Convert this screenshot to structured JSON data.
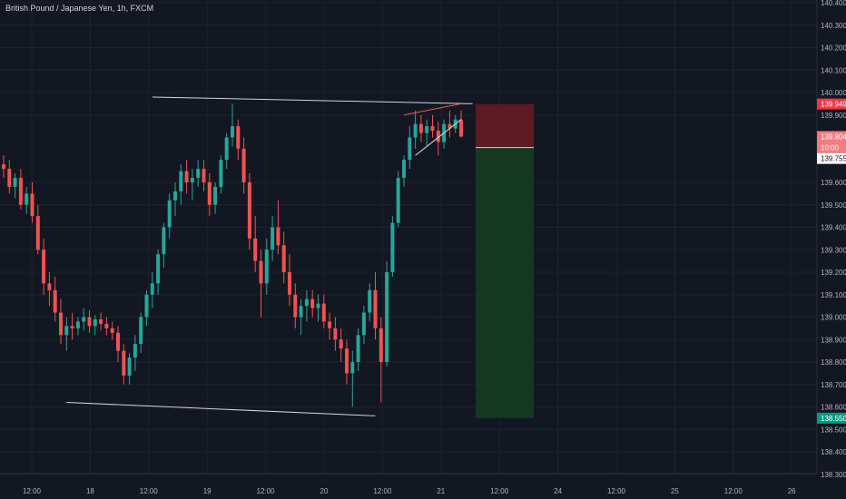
{
  "chart_data": {
    "type": "candlestick",
    "title": "British Pound / Japanese Yen, 1h, FXCM",
    "y_ticks": [
      "140.400",
      "140.300",
      "140.200",
      "140.100",
      "140.000",
      "139.900",
      "139.600",
      "139.500",
      "139.400",
      "139.300",
      "139.200",
      "139.100",
      "139.000",
      "138.900",
      "138.800",
      "138.700",
      "138.600",
      "138.500",
      "138.400",
      "138.300"
    ],
    "x_ticks": [
      "12:00",
      "18",
      "12:00",
      "19",
      "12:00",
      "20",
      "12:00",
      "21",
      "12:00",
      "24",
      "12:00",
      "25",
      "12:00",
      "26"
    ],
    "price_labels": {
      "stop": {
        "text": "139.949",
        "color": "#f23645"
      },
      "last": {
        "text": "139.804",
        "color": "#f77c80"
      },
      "countdown": {
        "text": "10:00",
        "color": "#f77c80"
      },
      "entry": {
        "text": "139.755",
        "color": "#ffffff"
      },
      "target": {
        "text": "138.550",
        "color": "#089981"
      }
    },
    "colors": {
      "up": "#26a69a",
      "down": "#ef5350",
      "background": "#131722",
      "risk": "#5c1a22",
      "reward": "#143822"
    },
    "candles": [
      [
        139.68,
        139.72,
        139.62,
        139.66
      ],
      [
        139.66,
        139.7,
        139.55,
        139.58
      ],
      [
        139.58,
        139.64,
        139.53,
        139.62
      ],
      [
        139.62,
        139.66,
        139.48,
        139.5
      ],
      [
        139.5,
        139.58,
        139.46,
        139.55
      ],
      [
        139.55,
        139.6,
        139.42,
        139.45
      ],
      [
        139.45,
        139.5,
        139.28,
        139.3
      ],
      [
        139.3,
        139.35,
        139.1,
        139.15
      ],
      [
        139.15,
        139.2,
        139.05,
        139.12
      ],
      [
        139.12,
        139.18,
        138.98,
        139.02
      ],
      [
        139.02,
        139.08,
        138.88,
        138.92
      ],
      [
        138.92,
        139.0,
        138.85,
        138.96
      ],
      [
        138.96,
        139.02,
        138.9,
        138.95
      ],
      [
        138.95,
        139.0,
        138.92,
        138.98
      ],
      [
        138.98,
        139.04,
        138.94,
        139.0
      ],
      [
        139.0,
        139.03,
        138.93,
        138.96
      ],
      [
        138.96,
        139.01,
        138.92,
        138.99
      ],
      [
        138.99,
        139.02,
        138.94,
        138.97
      ],
      [
        138.97,
        139.0,
        138.92,
        138.95
      ],
      [
        138.95,
        138.98,
        138.9,
        138.93
      ],
      [
        138.93,
        138.96,
        138.8,
        138.85
      ],
      [
        138.85,
        138.88,
        138.7,
        138.74
      ],
      [
        138.74,
        138.84,
        138.7,
        138.82
      ],
      [
        138.82,
        138.92,
        138.76,
        138.88
      ],
      [
        138.88,
        139.02,
        138.84,
        139.0
      ],
      [
        139.0,
        139.12,
        138.96,
        139.1
      ],
      [
        139.1,
        139.2,
        139.04,
        139.15
      ],
      [
        139.15,
        139.3,
        139.1,
        139.28
      ],
      [
        139.28,
        139.42,
        139.22,
        139.4
      ],
      [
        139.4,
        139.55,
        139.35,
        139.52
      ],
      [
        139.52,
        139.6,
        139.45,
        139.56
      ],
      [
        139.56,
        139.68,
        139.5,
        139.65
      ],
      [
        139.65,
        139.7,
        139.55,
        139.6
      ],
      [
        139.6,
        139.66,
        139.52,
        139.62
      ],
      [
        139.62,
        139.7,
        139.58,
        139.66
      ],
      [
        139.66,
        139.7,
        139.56,
        139.6
      ],
      [
        139.6,
        139.64,
        139.45,
        139.5
      ],
      [
        139.5,
        139.6,
        139.46,
        139.58
      ],
      [
        139.58,
        139.72,
        139.55,
        139.7
      ],
      [
        139.7,
        139.82,
        139.66,
        139.8
      ],
      [
        139.8,
        139.95,
        139.76,
        139.85
      ],
      [
        139.85,
        139.88,
        139.7,
        139.75
      ],
      [
        139.75,
        139.8,
        139.55,
        139.6
      ],
      [
        139.6,
        139.64,
        139.3,
        139.35
      ],
      [
        139.35,
        139.45,
        139.2,
        139.25
      ],
      [
        139.25,
        139.3,
        139.0,
        139.15
      ],
      [
        139.15,
        139.35,
        139.1,
        139.3
      ],
      [
        139.3,
        139.45,
        139.25,
        139.4
      ],
      [
        139.4,
        139.52,
        139.28,
        139.32
      ],
      [
        139.32,
        139.38,
        139.15,
        139.2
      ],
      [
        139.2,
        139.28,
        139.05,
        139.1
      ],
      [
        139.1,
        139.15,
        138.95,
        139.0
      ],
      [
        139.0,
        139.08,
        138.92,
        139.05
      ],
      [
        139.05,
        139.12,
        138.98,
        139.08
      ],
      [
        139.08,
        139.12,
        139.0,
        139.04
      ],
      [
        139.04,
        139.1,
        138.98,
        139.06
      ],
      [
        139.06,
        139.1,
        138.95,
        138.98
      ],
      [
        138.98,
        139.02,
        138.9,
        138.95
      ],
      [
        138.95,
        139.0,
        138.85,
        138.9
      ],
      [
        138.9,
        138.95,
        138.8,
        138.86
      ],
      [
        138.86,
        138.9,
        138.7,
        138.75
      ],
      [
        138.75,
        138.85,
        138.6,
        138.8
      ],
      [
        138.8,
        138.95,
        138.76,
        138.92
      ],
      [
        138.92,
        139.05,
        138.88,
        139.02
      ],
      [
        139.02,
        139.15,
        138.98,
        139.12
      ],
      [
        139.12,
        139.2,
        138.9,
        138.95
      ],
      [
        138.95,
        139.0,
        138.62,
        138.8
      ],
      [
        138.8,
        139.25,
        138.78,
        139.2
      ],
      [
        139.2,
        139.45,
        139.18,
        139.42
      ],
      [
        139.42,
        139.65,
        139.4,
        139.62
      ],
      [
        139.62,
        139.72,
        139.58,
        139.7
      ],
      [
        139.7,
        139.85,
        139.66,
        139.8
      ],
      [
        139.8,
        139.92,
        139.75,
        139.86
      ],
      [
        139.86,
        139.9,
        139.78,
        139.82
      ],
      [
        139.82,
        139.88,
        139.76,
        139.85
      ],
      [
        139.85,
        139.9,
        139.8,
        139.83
      ],
      [
        139.83,
        139.87,
        139.72,
        139.78
      ],
      [
        139.78,
        139.88,
        139.75,
        139.86
      ],
      [
        139.86,
        139.92,
        139.8,
        139.84
      ],
      [
        139.84,
        139.9,
        139.82,
        139.88
      ],
      [
        139.88,
        139.92,
        139.8,
        139.804
      ]
    ],
    "drawings": [
      {
        "name": "top-trendline",
        "color": "#d1d4dc",
        "p1": [
          26,
          139.98
        ],
        "p2": [
          82,
          139.95
        ]
      },
      {
        "name": "bottom-trendline",
        "color": "#d1d4dc",
        "p1": [
          11,
          138.62
        ],
        "p2": [
          65,
          138.56
        ]
      },
      {
        "name": "wedge-upper",
        "color": "#ef5350",
        "p1": [
          70,
          139.9
        ],
        "p2": [
          80,
          139.95
        ]
      },
      {
        "name": "wedge-lower",
        "color": "#d1d4dc",
        "p1": [
          72,
          139.72
        ],
        "p2": [
          80,
          139.88
        ]
      }
    ]
  }
}
